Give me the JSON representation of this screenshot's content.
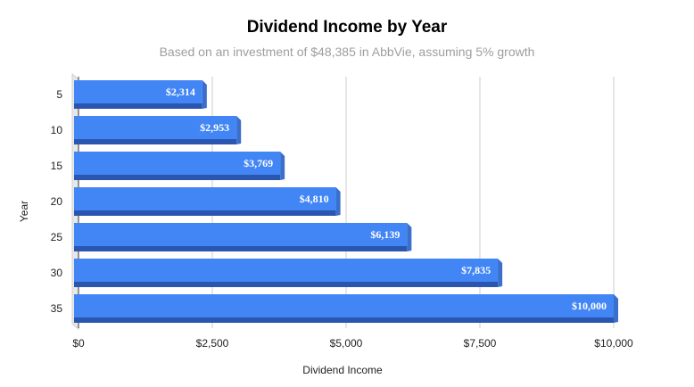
{
  "chart_data": {
    "type": "bar",
    "orientation": "horizontal",
    "title": "Dividend Income by Year",
    "subtitle": "Based on an investment of $48,385 in AbbVie, assuming 5% growth",
    "xlabel": "Dividend Income",
    "ylabel": "Year",
    "categories": [
      "5",
      "10",
      "15",
      "20",
      "25",
      "30",
      "35"
    ],
    "values": [
      2314,
      2953,
      3769,
      4810,
      6139,
      7835,
      10000
    ],
    "data_labels": [
      "$2,314",
      "$2,953",
      "$3,769",
      "$4,810",
      "$6,139",
      "$7,835",
      "$10,000"
    ],
    "xlim": [
      0,
      10000
    ],
    "x_ticks": [
      0,
      2500,
      5000,
      7500,
      10000
    ],
    "x_tick_labels": [
      "$0",
      "$2,500",
      "$5,000",
      "$7,500",
      "$10,000"
    ],
    "grid": true,
    "bar_color": "#4285f4",
    "bar_shadow_color": "#2a56b0"
  }
}
